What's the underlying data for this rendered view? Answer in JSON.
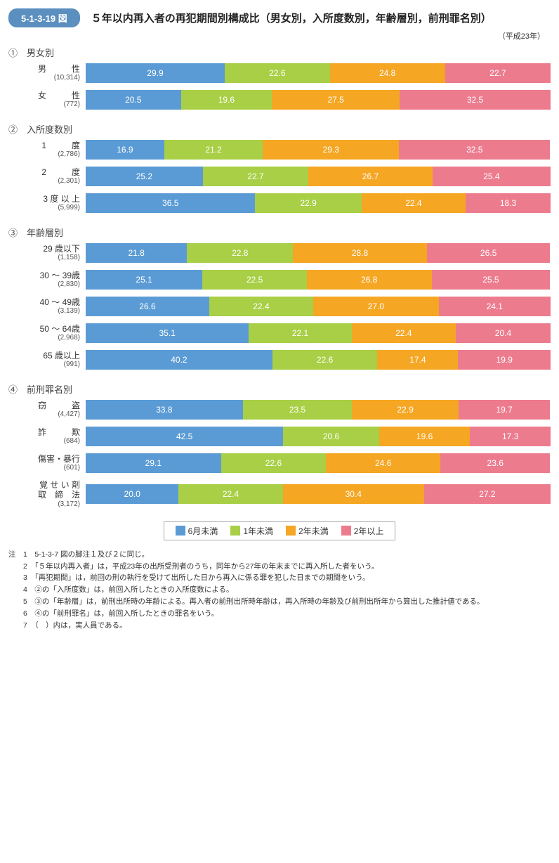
{
  "figure_tag": "5-1-3-19 図",
  "figure_title": "５年以内再入者の再犯期間別構成比（男女別，入所度数別，年齢層別，前刑罪名別）",
  "year_note": "（平成23年）",
  "colors": {
    "c1": "#5b9bd5",
    "c2": "#a8cf45",
    "c3": "#f5a623",
    "c4": "#ed7b8e"
  },
  "legend": [
    "6月未満",
    "1年未満",
    "2年未満",
    "2年以上"
  ],
  "sections": [
    {
      "num": "①",
      "title": "男女別",
      "rows": [
        {
          "label": "男　　　性",
          "count": "(10,314)",
          "values": [
            29.9,
            22.6,
            24.8,
            22.7
          ]
        },
        {
          "label": "女　　　性",
          "count": "(772)",
          "values": [
            20.5,
            19.6,
            27.5,
            32.5
          ]
        }
      ]
    },
    {
      "num": "②",
      "title": "入所度数別",
      "rows": [
        {
          "label": "1　　　度",
          "count": "(2,786)",
          "values": [
            16.9,
            21.2,
            29.3,
            32.5
          ]
        },
        {
          "label": "2　　　度",
          "count": "(2,301)",
          "values": [
            25.2,
            22.7,
            26.7,
            25.4
          ]
        },
        {
          "label": "3 度 以 上",
          "count": "(5,999)",
          "values": [
            36.5,
            22.9,
            22.4,
            18.3
          ]
        }
      ]
    },
    {
      "num": "③",
      "title": "年齢層別",
      "rows": [
        {
          "label": "29 歳以下",
          "count": "(1,158)",
          "values": [
            21.8,
            22.8,
            28.8,
            26.5
          ]
        },
        {
          "label": "30 ～ 39歳",
          "count": "(2,830)",
          "values": [
            25.1,
            22.5,
            26.8,
            25.5
          ]
        },
        {
          "label": "40 ～ 49歳",
          "count": "(3,139)",
          "values": [
            26.6,
            22.4,
            27.0,
            24.1
          ]
        },
        {
          "label": "50 ～ 64歳",
          "count": "(2,968)",
          "values": [
            35.1,
            22.1,
            22.4,
            20.4
          ]
        },
        {
          "label": "65 歳以上",
          "count": "(991)",
          "values": [
            40.2,
            22.6,
            17.4,
            19.9
          ]
        }
      ]
    },
    {
      "num": "④",
      "title": "前刑罪名別",
      "rows": [
        {
          "label": "窃　　　盗",
          "count": "(4,427)",
          "values": [
            33.8,
            23.5,
            22.9,
            19.7
          ]
        },
        {
          "label": "詐　　　欺",
          "count": "(684)",
          "values": [
            42.5,
            20.6,
            19.6,
            17.3
          ]
        },
        {
          "label": "傷害・暴行",
          "count": "(601)",
          "values": [
            29.1,
            22.6,
            24.6,
            23.6
          ]
        },
        {
          "label": "覚 せ い 剤\n取　締　法",
          "count": "(3,172)",
          "values": [
            20.0,
            22.4,
            30.4,
            27.2
          ]
        }
      ]
    }
  ],
  "footnotes": [
    "注　1　5-1-3-7 図の脚注１及び２に同じ。",
    "　　2　「５年以内再入者」は，平成23年の出所受刑者のうち，同年から27年の年末までに再入所した者をいう。",
    "　　3　「再犯期間」は，前回の刑の執行を受けて出所した日から再入に係る罪を犯した日までの期間をいう。",
    "　　4　②の「入所度数」は，前回入所したときの入所度数による。",
    "　　5　③の「年齢層」は，前刑出所時の年齢による。再入者の前刑出所時年齢は，再入所時の年齢及び前刑出所年から算出した推計値である。",
    "　　6　④の「前刑罪名」は，前回入所したときの罪名をいう。",
    "　　7　（　）内は，実人員である。"
  ]
}
